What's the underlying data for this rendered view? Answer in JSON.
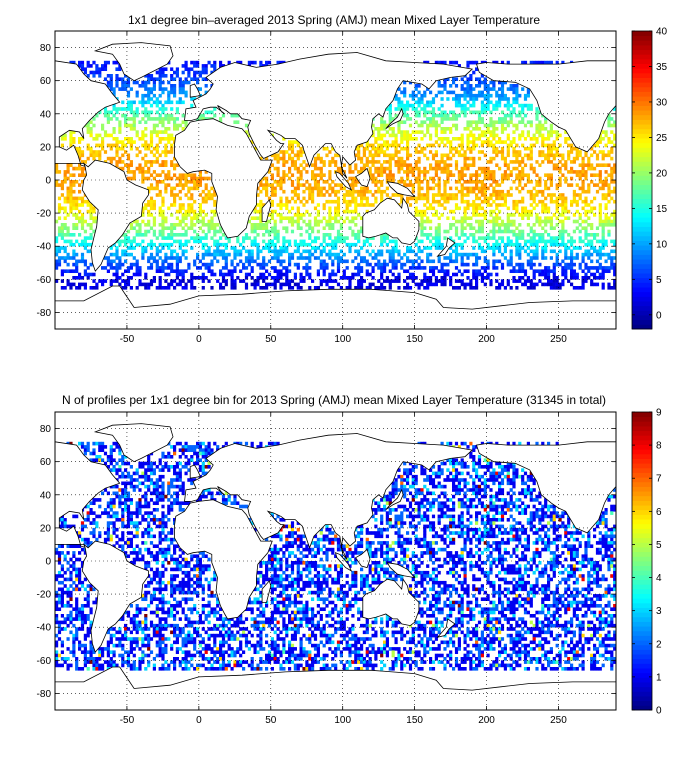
{
  "colors": {
    "land_outline": "#000000",
    "grid": "#000000",
    "background": "#ffffff"
  },
  "colormap": "jet",
  "chart_data": [
    {
      "type": "heatmap",
      "title": "1x1 degree bin–averaged 2013 Spring (AMJ) mean Mixed Layer Temperature",
      "xlim": [
        -100,
        290
      ],
      "ylim": [
        -90,
        90
      ],
      "xticks": [
        -50,
        0,
        50,
        100,
        150,
        200,
        250
      ],
      "yticks": [
        80,
        60,
        40,
        20,
        0,
        -20,
        -40,
        -60,
        -80
      ],
      "grid": true,
      "colorbar": {
        "range": [
          -2,
          40
        ],
        "ticks": [
          40,
          35,
          30,
          25,
          20,
          15,
          10,
          5,
          0
        ],
        "placement": "right"
      },
      "value_by_latitude": [
        {
          "lat": 70,
          "value": 4
        },
        {
          "lat": 60,
          "value": 6
        },
        {
          "lat": 50,
          "value": 10
        },
        {
          "lat": 40,
          "value": 17
        },
        {
          "lat": 30,
          "value": 22
        },
        {
          "lat": 20,
          "value": 26
        },
        {
          "lat": 10,
          "value": 28
        },
        {
          "lat": 0,
          "value": 28
        },
        {
          "lat": -10,
          "value": 27
        },
        {
          "lat": -20,
          "value": 24
        },
        {
          "lat": -30,
          "value": 19
        },
        {
          "lat": -40,
          "value": 13
        },
        {
          "lat": -50,
          "value": 7
        },
        {
          "lat": -60,
          "value": 2
        }
      ]
    },
    {
      "type": "heatmap",
      "title": "N of profiles per 1x1 degree bin for 2013 Spring (AMJ) mean Mixed Layer Temperature  (31345 in total)",
      "xlim": [
        -100,
        290
      ],
      "ylim": [
        -90,
        90
      ],
      "xticks": [
        -50,
        0,
        50,
        100,
        150,
        200,
        250
      ],
      "yticks": [
        80,
        60,
        40,
        20,
        0,
        -20,
        -40,
        -60,
        -80
      ],
      "grid": true,
      "total_profiles": 31345,
      "colorbar": {
        "range": [
          0,
          9
        ],
        "ticks": [
          9,
          8,
          7,
          6,
          5,
          4,
          3,
          2,
          1,
          0
        ],
        "placement": "right"
      },
      "typical_counts": [
        1,
        2,
        3
      ],
      "max_count": 9
    }
  ]
}
